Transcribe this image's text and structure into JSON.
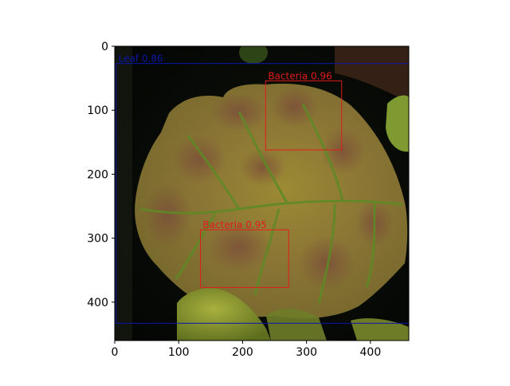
{
  "chart_data": {
    "type": "image",
    "title": "",
    "xlabel": "",
    "ylabel": "",
    "xlim": [
      0,
      460
    ],
    "ylim": [
      460,
      0
    ],
    "x_ticks": [
      0,
      100,
      200,
      300,
      400
    ],
    "y_ticks": [
      0,
      100,
      200,
      300,
      400
    ],
    "detections": [
      {
        "label": "Leaf 0.86",
        "x": [
          2,
          460
        ],
        "y": [
          27,
          433
        ],
        "color": "#0b17a8"
      },
      {
        "label": "Bacteria 0.96",
        "x": [
          236,
          355
        ],
        "y": [
          54,
          162
        ],
        "color": "#e21b1b"
      },
      {
        "label": "Bacteria 0.95",
        "x": [
          134,
          272
        ],
        "y": [
          287,
          377
        ],
        "color": "#e21b1b"
      }
    ]
  }
}
